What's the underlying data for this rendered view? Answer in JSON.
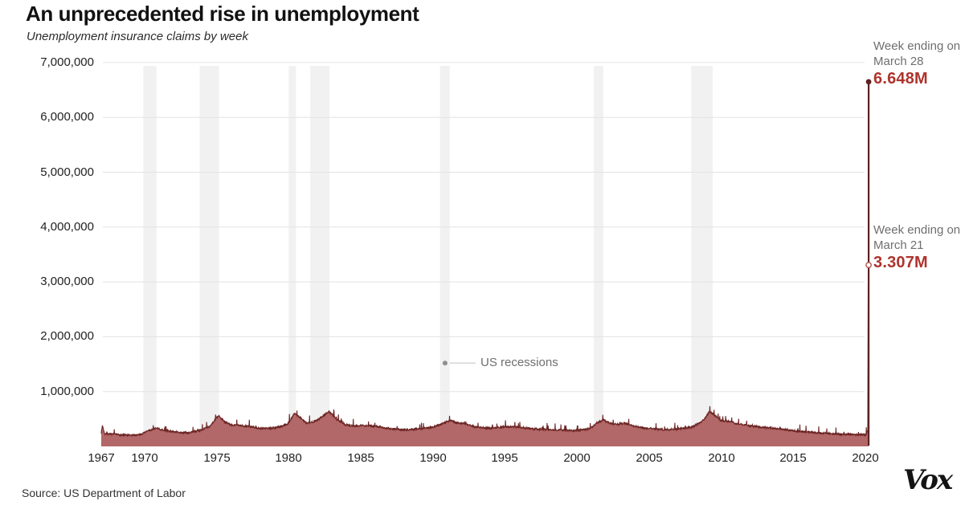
{
  "header": {
    "title": "An unprecedented rise in unemployment",
    "subtitle": "Unemployment insurance claims by week"
  },
  "footer": {
    "source": "Source: US Department of Labor",
    "logo": "Vox"
  },
  "chart_data": {
    "type": "area",
    "title": "An unprecedented rise in unemployment",
    "subtitle": "Unemployment insurance claims by week",
    "xlabel": "",
    "ylabel": "",
    "x_domain": [
      1967,
      2020.3
    ],
    "ylim": [
      0,
      7000000
    ],
    "grid": "horizontal",
    "colors": {
      "area_fill": "#b26868",
      "line": "#6b2423",
      "spike": "#5e2121",
      "value_red": "#ad342d",
      "annotation_gray": "#6f6f6f",
      "recession_band": "#f1f1f1",
      "gridline": "#e3e3e3",
      "legend_dot": "#8f8f8f"
    },
    "y_ticks": [
      {
        "value": 7000000,
        "label": "7,000,000"
      },
      {
        "value": 6000000,
        "label": "6,000,000"
      },
      {
        "value": 5000000,
        "label": "5,000,000"
      },
      {
        "value": 4000000,
        "label": "4,000,000"
      },
      {
        "value": 3000000,
        "label": "3,000,000"
      },
      {
        "value": 2000000,
        "label": "2,000,000"
      },
      {
        "value": 1000000,
        "label": "1,000,000"
      }
    ],
    "x_ticks": [
      {
        "value": 1967,
        "label": "1967"
      },
      {
        "value": 1970,
        "label": "1970"
      },
      {
        "value": 1975,
        "label": "1975"
      },
      {
        "value": 1980,
        "label": "1980"
      },
      {
        "value": 1985,
        "label": "1985"
      },
      {
        "value": 1990,
        "label": "1990"
      },
      {
        "value": 1995,
        "label": "1995"
      },
      {
        "value": 2000,
        "label": "2000"
      },
      {
        "value": 2005,
        "label": "2005"
      },
      {
        "value": 2010,
        "label": "2010"
      },
      {
        "value": 2015,
        "label": "2015"
      },
      {
        "value": 2020,
        "label": "2020"
      }
    ],
    "recessions": [
      [
        1969.92,
        1970.83
      ],
      [
        1973.83,
        1975.17
      ],
      [
        1980.0,
        1980.5
      ],
      [
        1981.5,
        1982.83
      ],
      [
        1990.5,
        1991.17
      ],
      [
        2001.17,
        2001.83
      ],
      [
        2007.92,
        2009.42
      ]
    ],
    "recession_label": {
      "text": "US recessions",
      "year": 1990.85,
      "claims": 1520000
    },
    "annotations": [
      {
        "line1": "Week ending on",
        "line2": "March 28",
        "value": "6.648M",
        "claims": 6648000,
        "marker": "filled"
      },
      {
        "line1": "Week ending on",
        "line2": "March 21",
        "value": "3.307M",
        "claims": 3307000,
        "marker": "open"
      }
    ],
    "series": [
      {
        "name": "Weekly unemployment insurance claims",
        "unit": "claims",
        "keypoints_year_claims": [
          [
            1967.0,
            250000
          ],
          [
            1967.08,
            380000
          ],
          [
            1967.25,
            230000
          ],
          [
            1968.0,
            215000
          ],
          [
            1969.0,
            200000
          ],
          [
            1969.7,
            215000
          ],
          [
            1970.2,
            280000
          ],
          [
            1970.8,
            330000
          ],
          [
            1971.3,
            300000
          ],
          [
            1972.0,
            265000
          ],
          [
            1973.0,
            245000
          ],
          [
            1973.9,
            295000
          ],
          [
            1974.5,
            360000
          ],
          [
            1974.95,
            500000
          ],
          [
            1975.15,
            555000
          ],
          [
            1975.5,
            460000
          ],
          [
            1976.0,
            390000
          ],
          [
            1977.0,
            375000
          ],
          [
            1978.0,
            330000
          ],
          [
            1979.0,
            335000
          ],
          [
            1979.9,
            400000
          ],
          [
            1980.4,
            600000
          ],
          [
            1980.75,
            540000
          ],
          [
            1981.2,
            430000
          ],
          [
            1981.7,
            440000
          ],
          [
            1982.2,
            520000
          ],
          [
            1982.8,
            640000
          ],
          [
            1983.3,
            500000
          ],
          [
            1983.9,
            400000
          ],
          [
            1984.5,
            370000
          ],
          [
            1985.0,
            385000
          ],
          [
            1986.0,
            365000
          ],
          [
            1987.0,
            325000
          ],
          [
            1988.0,
            300000
          ],
          [
            1989.0,
            320000
          ],
          [
            1990.0,
            350000
          ],
          [
            1990.7,
            420000
          ],
          [
            1991.2,
            480000
          ],
          [
            1991.6,
            430000
          ],
          [
            1992.1,
            420000
          ],
          [
            1993.0,
            350000
          ],
          [
            1994.0,
            330000
          ],
          [
            1995.0,
            360000
          ],
          [
            1996.0,
            350000
          ],
          [
            1997.0,
            320000
          ],
          [
            1998.0,
            305000
          ],
          [
            1999.0,
            295000
          ],
          [
            2000.0,
            285000
          ],
          [
            2000.9,
            330000
          ],
          [
            2001.4,
            430000
          ],
          [
            2001.85,
            480000
          ],
          [
            2002.3,
            420000
          ],
          [
            2002.9,
            405000
          ],
          [
            2003.3,
            425000
          ],
          [
            2003.9,
            375000
          ],
          [
            2004.5,
            340000
          ],
          [
            2005.0,
            330000
          ],
          [
            2006.0,
            305000
          ],
          [
            2007.0,
            315000
          ],
          [
            2007.9,
            350000
          ],
          [
            2008.5,
            420000
          ],
          [
            2008.9,
            520000
          ],
          [
            2009.2,
            645000
          ],
          [
            2009.6,
            555000
          ],
          [
            2010.0,
            470000
          ],
          [
            2010.6,
            455000
          ],
          [
            2011.0,
            420000
          ],
          [
            2012.0,
            375000
          ],
          [
            2013.0,
            345000
          ],
          [
            2014.0,
            320000
          ],
          [
            2015.0,
            285000
          ],
          [
            2016.0,
            262000
          ],
          [
            2017.0,
            245000
          ],
          [
            2018.0,
            222000
          ],
          [
            2019.0,
            218000
          ],
          [
            2019.6,
            212000
          ],
          [
            2020.05,
            210000
          ],
          [
            2020.14,
            282000
          ],
          [
            2020.17,
            282000
          ],
          [
            2020.2,
            3307000
          ],
          [
            2020.23,
            6648000
          ]
        ]
      }
    ]
  }
}
